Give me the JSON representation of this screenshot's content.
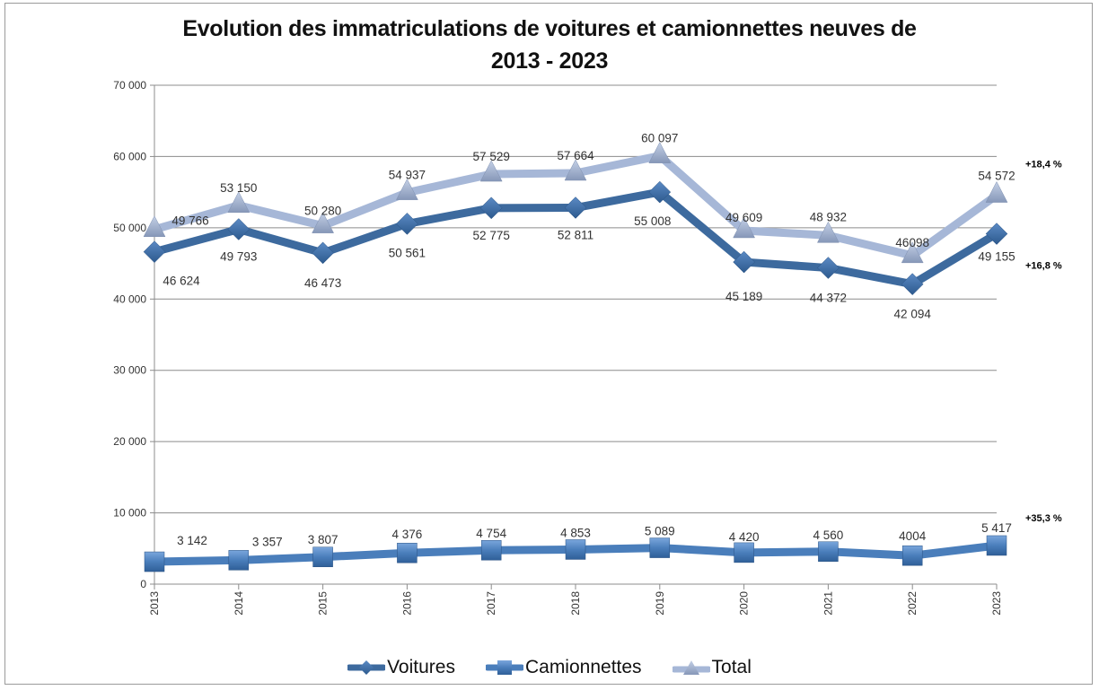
{
  "chart_data": {
    "type": "line",
    "title_line1": "Evolution des immatriculations de voitures et camionnettes neuves de",
    "title_line2": "2013 - 2023",
    "xlabel": "",
    "ylabel": "",
    "x": [
      "2013",
      "2014",
      "2015",
      "2016",
      "2017",
      "2018",
      "2019",
      "2020",
      "2021",
      "2022",
      "2023"
    ],
    "ylim": [
      0,
      70000
    ],
    "yticks": [
      0,
      10000,
      20000,
      30000,
      40000,
      50000,
      60000,
      70000
    ],
    "ytick_labels": [
      "0",
      "10 000",
      "20 000",
      "30 000",
      "40 000",
      "50 000",
      "60 000",
      "70 000"
    ],
    "grid": true,
    "legend_position": "bottom",
    "series": [
      {
        "name": "Voitures",
        "marker": "diamond",
        "color": "#3d6a9e",
        "values": [
          46624,
          49793,
          46473,
          50561,
          52775,
          52811,
          55008,
          45189,
          44372,
          42094,
          49155
        ],
        "labels": [
          "46 624",
          "49 793",
          "46 473",
          "50 561",
          "52 775",
          "52 811",
          "55 008",
          "45 189",
          "44 372",
          "42 094",
          "49 155"
        ],
        "label_position": "below"
      },
      {
        "name": "Camionnettes",
        "marker": "square",
        "color": "#4a7ebb",
        "values": [
          3142,
          3357,
          3807,
          4376,
          4754,
          4853,
          5089,
          4420,
          4560,
          4004,
          5417
        ],
        "labels": [
          "3 142",
          "3 357",
          "3 807",
          "4 376",
          "4 754",
          "4 853",
          "5 089",
          "4 420",
          "4 560",
          "4004",
          "5 417"
        ],
        "label_position": "above"
      },
      {
        "name": "Total",
        "marker": "triangle",
        "color": "#a6b7d7",
        "values": [
          49766,
          53150,
          50280,
          54937,
          57529,
          57664,
          60097,
          49609,
          48932,
          46098,
          54572
        ],
        "labels": [
          "49 766",
          "53 150",
          "50 280",
          "54 937",
          "57 529",
          "57 664",
          "60 097",
          "49 609",
          "48 932",
          "46098",
          "54 572"
        ],
        "label_position": "above"
      }
    ],
    "annotations": [
      {
        "series": "Total",
        "text": "+18,4 %"
      },
      {
        "series": "Voitures",
        "text": "+16,8 %"
      },
      {
        "series": "Camionnettes",
        "text": "+35,3 %"
      }
    ]
  }
}
